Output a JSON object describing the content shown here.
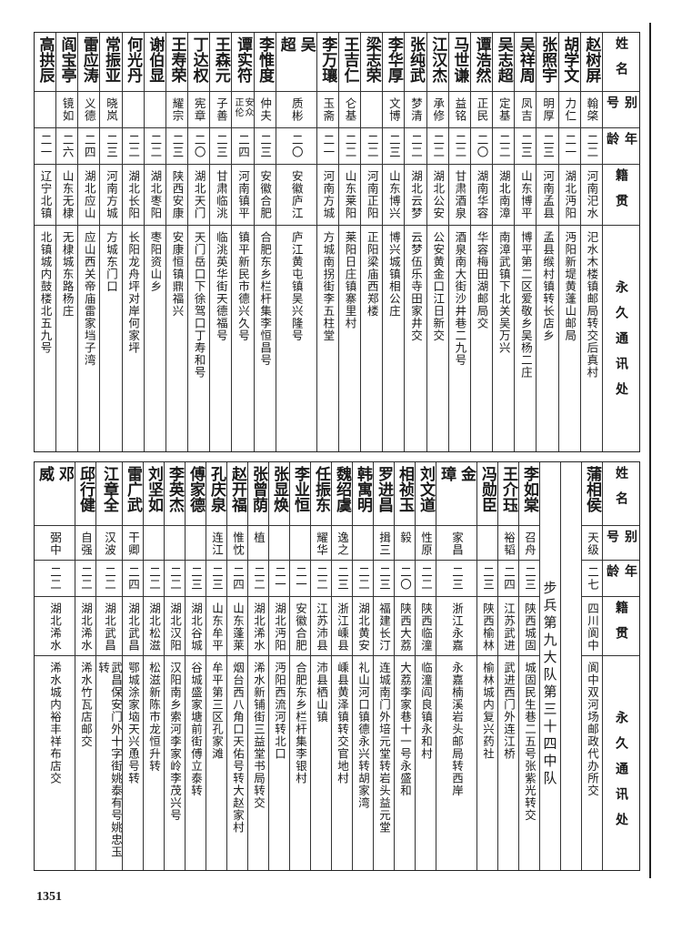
{
  "headers": {
    "name": "姓名",
    "alias": "别号",
    "age": "年龄",
    "native": "籍贯",
    "address": "永久通讯处"
  },
  "top_table": {
    "rows": [
      {
        "name": "赵树屏",
        "alias": "翰棨",
        "age": "二二",
        "native": "河南汜水",
        "address": "汜水木楼镇邮局转交后真村"
      },
      {
        "name": "胡学文",
        "alias": "力仁",
        "age": "二一",
        "native": "湖北沔阳",
        "address": "沔阳新堤黄蓬山邮局"
      },
      {
        "name": "张照宇",
        "alias": "明厚",
        "age": "二三",
        "native": "河南孟县",
        "address": "孟县缑村镇转长店乡"
      },
      {
        "name": "吴祥周",
        "alias": "凤吉",
        "age": "二三",
        "native": "山东博平",
        "address": "博平第二区爱敬乡吴杨二庄"
      },
      {
        "name": "吴志超",
        "alias": "定基",
        "age": "二二",
        "native": "湖北南漳",
        "address": "南漳武镇下北关吴万兴"
      },
      {
        "name": "谭浩然",
        "alias": "正民",
        "age": "二〇",
        "native": "湖南华容",
        "address": "华容梅田湖邮局交"
      },
      {
        "name": "马世谦",
        "alias": "益铭",
        "age": "二二",
        "native": "甘肃酒泉",
        "address": "酒泉南大街沙井巷二九号"
      },
      {
        "name": "江汉杰",
        "alias": "承修",
        "age": "二二",
        "native": "湖北公安",
        "address": "公安黄金口江日新交"
      },
      {
        "name": "张纯武",
        "alias": "梦清",
        "age": "二二",
        "native": "湖北云梦",
        "address": "云梦伍乐寺田家井交"
      },
      {
        "name": "李华厚",
        "alias": "文博",
        "age": "二三",
        "native": "山东博兴",
        "address": "博兴城镇相公庄"
      },
      {
        "name": "梁志荣",
        "alias": "",
        "age": "二二",
        "native": "河南正阳",
        "address": "正阳梁庙西郑楼"
      },
      {
        "name": "王吉仁",
        "alias": "仑基",
        "age": "二二",
        "native": "山东莱阳",
        "address": "莱阳日庄镇寨里村"
      },
      {
        "name": "李万瓖",
        "alias": "玉斋",
        "age": "二一",
        "native": "河南方城",
        "address": "方城南拐街李五柱堂"
      },
      {
        "name": "吴超",
        "alias": "质彬",
        "age": "二〇",
        "native": "安徽庐江",
        "address": "庐江黄屯镇吴兴隆号"
      },
      {
        "name": "李惟度",
        "alias": "仲夫",
        "age": "二三",
        "native": "安徽合肥",
        "address": "合肥东乡栏杆集李恒昌号"
      },
      {
        "name": "谭实符",
        "alias": "安众\n正伦",
        "age": "二四",
        "native": "河南镇平",
        "address": "镇平新民市德兴久号"
      },
      {
        "name": "王森元",
        "alias": "子善",
        "age": "二三",
        "native": "甘肃临洮",
        "address": "临洮英华街天德福号"
      },
      {
        "name": "丁达权",
        "alias": "宪章",
        "age": "二〇",
        "native": "湖北天门",
        "address": "天门岳口下徐驾口丁寿和号"
      },
      {
        "name": "王寿荣",
        "alias": "耀宗",
        "age": "二三",
        "native": "陕西安康",
        "address": "安康恒镇鼎福兴"
      },
      {
        "name": "谢伯显",
        "alias": "",
        "age": "二二",
        "native": "湖北枣阳",
        "address": "枣阳资山乡"
      },
      {
        "name": "何光丹",
        "alias": "",
        "age": "二二",
        "native": "湖北长阳",
        "address": "长阳龙舟坪对岸何家坪"
      },
      {
        "name": "常振亚",
        "alias": "晓岚",
        "age": "二三",
        "native": "河南方城",
        "address": "方城东门口"
      },
      {
        "name": "雷应涛",
        "alias": "义德",
        "age": "二四",
        "native": "湖北应山",
        "address": "应山西关帝庙雷家垱子湾"
      },
      {
        "name": "阎宝亭",
        "alias": "镜如",
        "age": "二六",
        "native": "山东无棣",
        "address": "无棣城东路杨庄"
      },
      {
        "name": "高拱辰",
        "alias": "",
        "age": "二一",
        "native": "辽宁北镇",
        "address": "北镇城内鼓楼北五九号"
      }
    ]
  },
  "bottom_table": {
    "first_row": {
      "name": "蒲相侯",
      "alias": "天级",
      "age": "二七",
      "native": "四川阆中",
      "address": "阆中双河场邮政代办所交"
    },
    "unit_banner": "步兵第九大队第三十四中队",
    "rows": [
      {
        "name": "李如棠",
        "alias": "召舟",
        "age": "二三",
        "native": "陕西城固",
        "address": "城固民生巷二五号张紫光转交"
      },
      {
        "name": "王介珏",
        "alias": "裕韬",
        "age": "二四",
        "native": "江苏武进",
        "address": "武进西门外连江桥"
      },
      {
        "name": "冯勋臣",
        "alias": "",
        "age": "二三",
        "native": "陕西榆林",
        "address": "榆林城内复兴药社"
      },
      {
        "name": "金璋",
        "alias": "家昌",
        "age": "二三",
        "native": "浙江永嘉",
        "address": "永嘉楠溪岩头邮局转西岸"
      },
      {
        "name": "刘文道",
        "alias": "性原",
        "age": "二二",
        "native": "陕西临潼",
        "address": "临潼阎良镇永和村"
      },
      {
        "name": "相祯玉",
        "alias": "毅",
        "age": "二〇",
        "native": "陕西大荔",
        "address": "大荔李家巷十一号永盛和"
      },
      {
        "name": "罗进昌",
        "alias": "揖三",
        "age": "二三",
        "native": "福建长汀",
        "address": "连城南门外培元堂转岩头益元堂"
      },
      {
        "name": "韩寓明",
        "alias": "",
        "age": "二二",
        "native": "湖北黄安",
        "address": "礼山河口镇德永兴转胡家湾"
      },
      {
        "name": "魏绍虞",
        "alias": "逸之",
        "age": "二三",
        "native": "浙江嵊县",
        "address": "嵊县黄泽镇转交官地村"
      },
      {
        "name": "任振东",
        "alias": "耀华",
        "age": "二二",
        "native": "江苏沛县",
        "address": "沛县栖山镇"
      },
      {
        "name": "李业恒",
        "alias": "",
        "age": "二一",
        "native": "安徽合肥",
        "address": "合肥东乡栏杆集李银村"
      },
      {
        "name": "张显焕",
        "alias": "",
        "age": "二一",
        "native": "湖北沔阳",
        "address": "沔阳西流河转北口"
      },
      {
        "name": "张曾荫",
        "alias": "植",
        "age": "二二",
        "native": "湖北浠水",
        "address": "浠水新铺街三益堂书局转交"
      },
      {
        "name": "赵开福",
        "alias": "惟忱",
        "age": "二四",
        "native": "山东蓬莱",
        "address": "烟台西八角口天佑号转大赵家村"
      },
      {
        "name": "孔庆泉",
        "alias": "连江",
        "age": "二三",
        "native": "山东牟平",
        "address": "牟平第三区孔家滩"
      },
      {
        "name": "傅家德",
        "alias": "",
        "age": "二三",
        "native": "湖北谷城",
        "address": "谷城盛家塘前街傅立泰转"
      },
      {
        "name": "李英杰",
        "alias": "",
        "age": "二二",
        "native": "湖北汉阳",
        "address": "汉阳南乡索河李家岭李茂兴号"
      },
      {
        "name": "刘坚如",
        "alias": "",
        "age": "二二",
        "native": "湖北松滋",
        "address": "松滋新陈市龙恒升转"
      },
      {
        "name": "雷广武",
        "alias": "干卿",
        "age": "二四",
        "native": "湖北武昌",
        "address": "鄂城涂家垴天兴恿号转"
      },
      {
        "name": "江章全",
        "alias": "汉波",
        "age": "二二",
        "native": "湖北武昌",
        "address": "武昌保安门外十字街姚泰有号姚忠玉转"
      },
      {
        "name": "邱行健",
        "alias": "自强",
        "age": "二二",
        "native": "湖北浠水",
        "address": "浠水竹瓦店邮交"
      },
      {
        "name": "邓威",
        "alias": "弼中",
        "age": "二二",
        "native": "湖北浠水",
        "address": "浠水城内裕丰祥布店交"
      }
    ]
  },
  "page_number": "1351"
}
